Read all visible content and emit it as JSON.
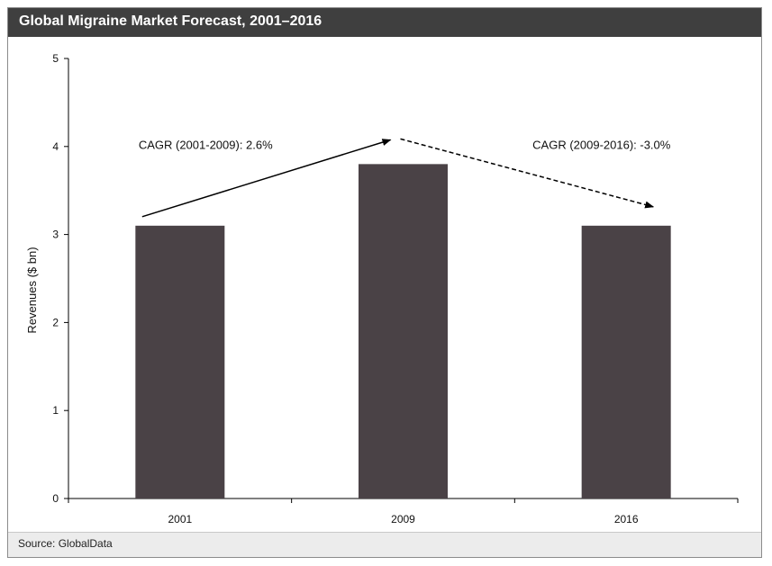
{
  "header": {
    "title": "Global Migraine Market Forecast, 2001–2016"
  },
  "footer": {
    "source": "Source: GlobalData"
  },
  "colors": {
    "bar": "#4a4246",
    "title_bg": "#3f3f3f",
    "source_bg": "#ececec"
  },
  "chart_data": {
    "type": "bar",
    "categories": [
      "2001",
      "2009",
      "2016"
    ],
    "values": [
      3.1,
      3.8,
      3.1
    ],
    "ylabel": "Revenues ($ bn)",
    "xlabel": "",
    "ylim": [
      0,
      5
    ],
    "yticks": [
      "0",
      "1",
      "2",
      "3",
      "4",
      "5"
    ],
    "grid": false,
    "annotations": [
      {
        "text": "CAGR (2001-2009):  2.6%",
        "arrow": "solid",
        "from_category": "2001",
        "to_category": "2009"
      },
      {
        "text": "CAGR (2009-2016):  -3.0%",
        "arrow": "dashed",
        "from_category": "2009",
        "to_category": "2016"
      }
    ]
  }
}
